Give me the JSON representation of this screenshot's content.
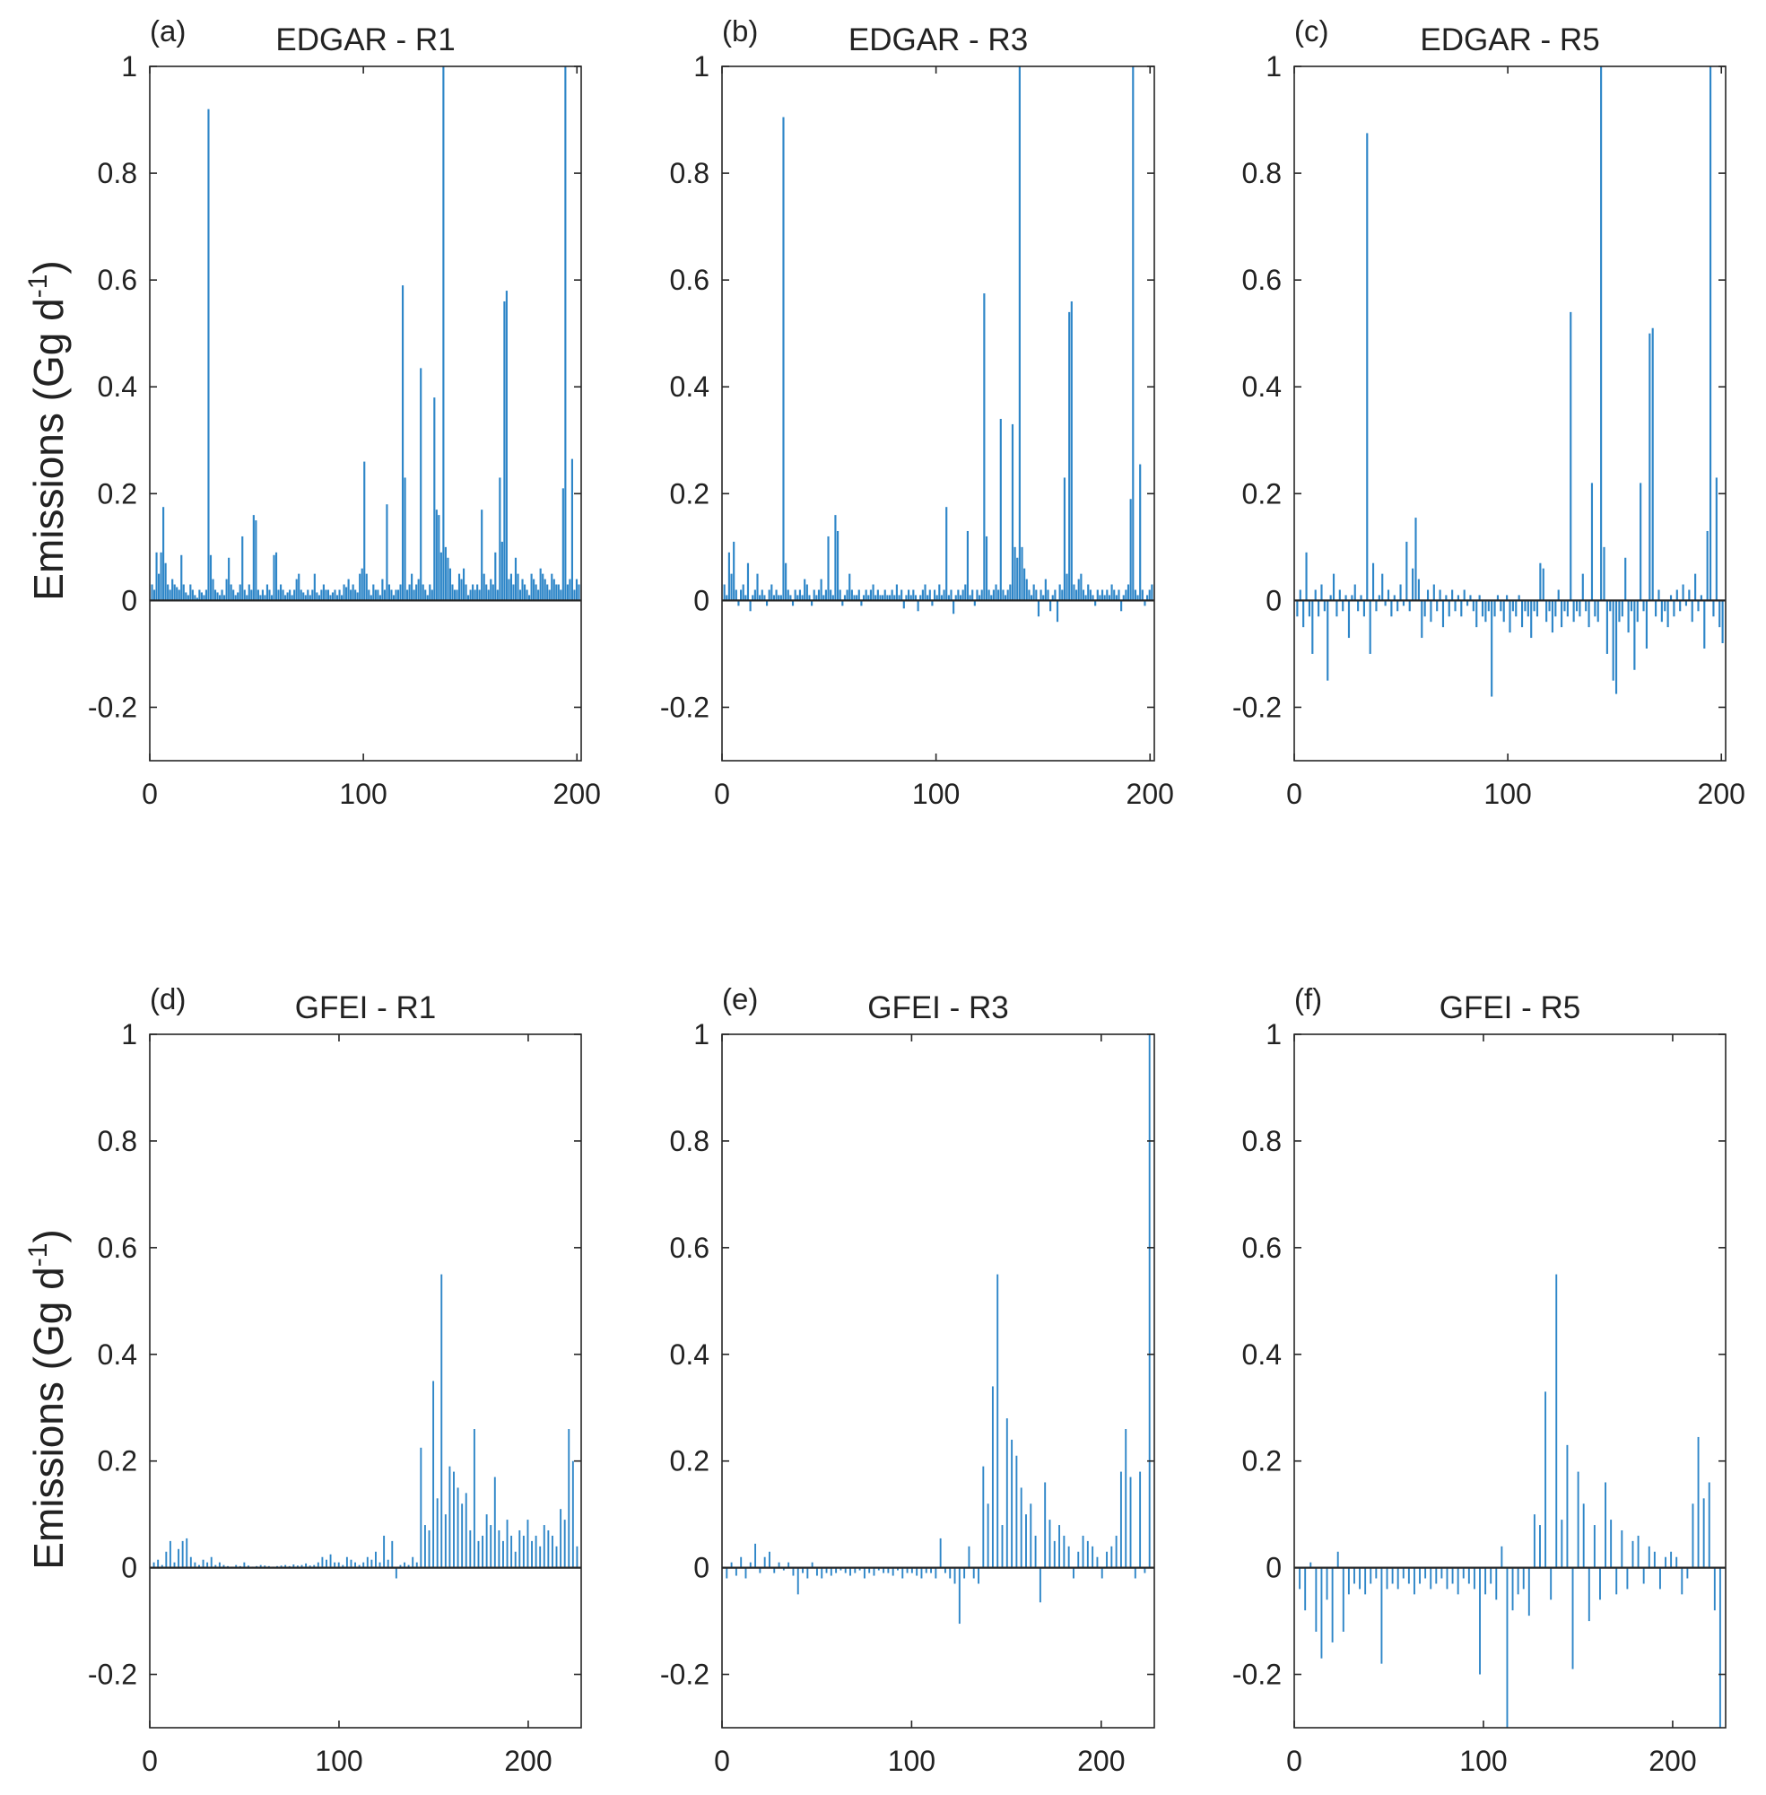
{
  "figure": {
    "ylabel_main": "Emissions (Gg d",
    "ylabel_exp": "-1",
    "ylabel_end": ")"
  },
  "colors": {
    "bar": "#2e86c8",
    "axis": "#262626"
  },
  "chart_data": [
    {
      "type": "bar",
      "panel": "(a)",
      "title": "EDGAR - R1",
      "xlim": [
        0,
        202
      ],
      "xticks": [
        0,
        100,
        200
      ],
      "ylim": [
        -0.3,
        1
      ],
      "yticks": [
        -0.2,
        0,
        0.2,
        0.4,
        0.6,
        0.8,
        1
      ],
      "ytick_labels": [
        "-0.2",
        "0",
        "0.2",
        "0.4",
        "0.6",
        "0.8",
        "1"
      ],
      "series": [
        {
          "values": [
            0.03,
            0.02,
            0.09,
            0.05,
            0.09,
            0.175,
            0.07,
            0.03,
            0.02,
            0.04,
            0.03,
            0.025,
            0.02,
            0.085,
            0.03,
            0.015,
            0.01,
            0.03,
            0.02,
            0.01,
            0.005,
            0.02,
            0.015,
            0.01,
            0.02,
            0.92,
            0.085,
            0.04,
            0.02,
            0.015,
            0.01,
            0.02,
            0.01,
            0.04,
            0.08,
            0.03,
            0.02,
            0.01,
            0.015,
            0.03,
            0.12,
            0.02,
            0.01,
            0.03,
            0.02,
            0.16,
            0.15,
            0.02,
            0.01,
            0.02,
            0.01,
            0.03,
            0.02,
            0.01,
            0.085,
            0.09,
            0.02,
            0.03,
            0.02,
            0.01,
            0.015,
            0.02,
            0.01,
            0.02,
            0.04,
            0.05,
            0.02,
            0.015,
            0.01,
            0.02,
            0.01,
            0.02,
            0.05,
            0.015,
            0.01,
            0.02,
            0.03,
            0.02,
            0.02,
            0.01,
            0.015,
            0.02,
            0.01,
            0.02,
            0.01,
            0.03,
            0.025,
            0.04,
            0.02,
            0.03,
            0.02,
            0.015,
            0.05,
            0.06,
            0.26,
            0.05,
            0.02,
            0.01,
            0.03,
            0.02,
            0.02,
            0.01,
            0.04,
            0.02,
            0.18,
            0.03,
            0.02,
            0.01,
            0.02,
            0.02,
            0.03,
            0.59,
            0.23,
            0.02,
            0.03,
            0.05,
            0.02,
            0.03,
            0.04,
            0.435,
            0.03,
            0.02,
            0.01,
            0.03,
            0.02,
            0.38,
            0.17,
            0.16,
            0.09,
            1.0,
            0.1,
            0.08,
            0.06,
            0.03,
            0.02,
            0.02,
            0.05,
            0.04,
            0.06,
            0.03,
            0.01,
            0.02,
            0.03,
            0.02,
            0.03,
            0.02,
            0.17,
            0.05,
            0.03,
            0.02,
            0.04,
            0.03,
            0.09,
            0.02,
            0.23,
            0.11,
            0.56,
            0.58,
            0.04,
            0.05,
            0.03,
            0.08,
            0.05,
            0.02,
            0.04,
            0.03,
            0.02,
            0.01,
            0.05,
            0.04,
            0.03,
            0.02,
            0.06,
            0.05,
            0.04,
            0.03,
            0.02,
            0.05,
            0.04,
            0.03,
            0.03,
            0.02,
            0.21,
            1.0,
            0.03,
            0.04,
            0.265,
            0.02,
            0.04,
            0.03
          ]
        }
      ]
    },
    {
      "type": "bar",
      "panel": "(b)",
      "title": "EDGAR - R3",
      "xlim": [
        0,
        202
      ],
      "xticks": [
        0,
        100,
        200
      ],
      "ylim": [
        -0.3,
        1
      ],
      "yticks": [
        -0.2,
        0,
        0.2,
        0.4,
        0.6,
        0.8,
        1
      ],
      "ytick_labels": [
        "-0.2",
        "0",
        "0.2",
        "0.4",
        "0.6",
        "0.8",
        "1"
      ],
      "series": [
        {
          "values": [
            0.03,
            0.01,
            0.09,
            0.05,
            0.11,
            0.02,
            -0.01,
            0.02,
            0.03,
            0.01,
            0.07,
            -0.02,
            0.01,
            0.02,
            0.05,
            0.01,
            0.02,
            0.01,
            -0.01,
            0.02,
            0.03,
            0.01,
            0.02,
            0.01,
            0.01,
            0.905,
            0.07,
            0.02,
            0.01,
            -0.01,
            0.02,
            0.01,
            0.02,
            0.01,
            0.04,
            0.03,
            0.01,
            -0.01,
            0.02,
            0.01,
            0.02,
            0.04,
            0.01,
            0.02,
            0.12,
            0.02,
            0.01,
            0.16,
            0.13,
            0.02,
            -0.01,
            0.01,
            0.02,
            0.05,
            0.02,
            0.01,
            0.01,
            0.02,
            -0.01,
            0.01,
            0.02,
            0.01,
            0.02,
            0.03,
            0.01,
            0.02,
            0.01,
            0.01,
            0.02,
            0.01,
            0.01,
            0.02,
            0.01,
            0.03,
            0.01,
            0.02,
            -0.015,
            0.01,
            0.02,
            0.01,
            0.02,
            0.01,
            -0.02,
            0.01,
            0.02,
            0.03,
            0.01,
            0.02,
            -0.01,
            0.02,
            0.01,
            0.03,
            0.01,
            0.02,
            0.175,
            0.01,
            0.02,
            -0.025,
            0.01,
            0.02,
            0.01,
            0.02,
            0.03,
            0.13,
            0.01,
            0.02,
            -0.01,
            0.02,
            0.01,
            0.02,
            0.575,
            0.12,
            0.02,
            0.01,
            0.02,
            0.03,
            0.02,
            0.34,
            0.02,
            0.01,
            0.02,
            0.03,
            0.33,
            0.1,
            0.08,
            1.0,
            0.1,
            0.06,
            0.04,
            0.02,
            0.01,
            0.03,
            0.02,
            -0.03,
            0.02,
            0.01,
            0.04,
            0.02,
            -0.02,
            0.01,
            0.02,
            -0.04,
            0.03,
            0.02,
            0.23,
            0.05,
            0.54,
            0.56,
            0.03,
            0.02,
            0.04,
            0.05,
            0.02,
            0.01,
            0.03,
            0.02,
            0.01,
            -0.01,
            0.02,
            0.01,
            0.02,
            0.01,
            0.02,
            0.01,
            0.03,
            0.02,
            0.01,
            0.02,
            -0.02,
            0.01,
            0.02,
            0.03,
            0.19,
            1.0,
            0.02,
            0.01,
            0.255,
            0.02,
            -0.01,
            0.01,
            0.02,
            0.03
          ]
        }
      ]
    },
    {
      "type": "bar",
      "panel": "(c)",
      "title": "EDGAR - R5",
      "xlim": [
        0,
        202
      ],
      "xticks": [
        0,
        100,
        200
      ],
      "ylim": [
        -0.3,
        1
      ],
      "yticks": [
        -0.2,
        0,
        0.2,
        0.4,
        0.6,
        0.8,
        1
      ],
      "ytick_labels": [
        "-0.2",
        "0",
        "0.2",
        "0.4",
        "0.6",
        "0.8",
        "1"
      ],
      "series": [
        {
          "values": [
            -0.03,
            0.02,
            -0.05,
            0.09,
            -0.03,
            -0.1,
            0.02,
            -0.03,
            0.03,
            -0.02,
            -0.15,
            0.01,
            0.05,
            -0.03,
            0.02,
            -0.02,
            0.01,
            -0.07,
            0.01,
            0.03,
            -0.02,
            0.01,
            -0.03,
            0.875,
            -0.1,
            0.07,
            -0.02,
            0.01,
            0.05,
            -0.01,
            0.02,
            -0.03,
            0.01,
            -0.02,
            0.03,
            -0.01,
            0.11,
            -0.02,
            0.06,
            0.155,
            0.04,
            -0.07,
            -0.03,
            0.02,
            -0.04,
            0.03,
            -0.02,
            0.02,
            -0.05,
            0.01,
            -0.03,
            0.02,
            -0.02,
            0.01,
            -0.03,
            0.02,
            -0.01,
            0.01,
            -0.02,
            -0.05,
            0.01,
            -0.03,
            -0.04,
            -0.02,
            -0.18,
            -0.03,
            0.01,
            -0.02,
            -0.04,
            0.01,
            -0.06,
            -0.02,
            -0.03,
            0.01,
            -0.05,
            -0.02,
            -0.03,
            -0.07,
            -0.02,
            -0.03,
            0.07,
            0.06,
            -0.04,
            -0.02,
            -0.06,
            -0.03,
            0.02,
            -0.05,
            -0.02,
            -0.03,
            0.54,
            -0.04,
            -0.02,
            -0.03,
            0.05,
            -0.02,
            -0.05,
            0.22,
            -0.03,
            -0.04,
            1.0,
            0.1,
            -0.1,
            -0.02,
            -0.15,
            -0.175,
            -0.04,
            -0.03,
            0.08,
            -0.06,
            -0.02,
            -0.13,
            -0.04,
            0.22,
            -0.02,
            -0.09,
            0.5,
            0.51,
            -0.03,
            0.02,
            -0.04,
            -0.02,
            -0.05,
            0.01,
            -0.03,
            0.02,
            -0.02,
            0.03,
            -0.01,
            0.02,
            -0.04,
            0.05,
            -0.02,
            0.01,
            -0.09,
            0.13,
            1.0,
            -0.03,
            0.23,
            -0.05,
            -0.08
          ]
        }
      ]
    },
    {
      "type": "bar",
      "panel": "(d)",
      "title": "GFEI - R1",
      "xlim": [
        0,
        228
      ],
      "xticks": [
        0,
        100,
        200
      ],
      "ylim": [
        -0.3,
        1
      ],
      "yticks": [
        -0.2,
        0,
        0.2,
        0.4,
        0.6,
        0.8,
        1
      ],
      "ytick_labels": [
        "-0.2",
        "0",
        "0.2",
        "0.4",
        "0.6",
        "0.8",
        "1"
      ],
      "series": [
        {
          "values": [
            0.01,
            0.015,
            0.005,
            0.03,
            0.05,
            0.01,
            0.035,
            0.05,
            0.055,
            0.02,
            0.01,
            0.005,
            0.015,
            0.01,
            0.02,
            0.005,
            0.01,
            0.005,
            0.003,
            0.002,
            0.005,
            0.003,
            0.01,
            0.004,
            0.002,
            0.003,
            0.005,
            0.004,
            0.003,
            0.002,
            0.003,
            0.004,
            0.005,
            0.003,
            0.006,
            0.004,
            0.005,
            0.008,
            0.004,
            0.005,
            0.01,
            0.02,
            0.015,
            0.025,
            0.01,
            0.01,
            0.005,
            0.02,
            0.015,
            0.01,
            0.005,
            0.01,
            0.02,
            0.015,
            0.03,
            0.01,
            0.06,
            0.015,
            0.05,
            -0.02,
            0.005,
            0.01,
            0.005,
            0.02,
            0.01,
            0.225,
            0.08,
            0.07,
            0.35,
            0.13,
            0.55,
            0.1,
            0.19,
            0.18,
            0.15,
            0.12,
            0.14,
            0.07,
            0.26,
            0.05,
            0.06,
            0.1,
            0.08,
            0.17,
            0.07,
            0.05,
            0.09,
            0.06,
            0.03,
            0.07,
            0.06,
            0.09,
            0.05,
            0.06,
            0.04,
            0.08,
            0.07,
            0.06,
            0.04,
            0.11,
            0.09,
            0.26,
            0.2,
            0.04
          ]
        }
      ]
    },
    {
      "type": "bar",
      "panel": "(e)",
      "title": "GFEI - R3",
      "xlim": [
        0,
        228
      ],
      "xticks": [
        0,
        100,
        200
      ],
      "ylim": [
        -0.3,
        1
      ],
      "yticks": [
        -0.2,
        0,
        0.2,
        0.4,
        0.6,
        0.8,
        1
      ],
      "ytick_labels": [
        "-0.2",
        "0",
        "0.2",
        "0.4",
        "0.6",
        "0.8",
        "1"
      ],
      "series": [
        {
          "values": [
            -0.02,
            0.01,
            -0.015,
            0.02,
            -0.02,
            0.01,
            0.045,
            -0.01,
            0.02,
            0.03,
            -0.01,
            0.01,
            -0.005,
            0.01,
            -0.015,
            -0.05,
            -0.01,
            -0.02,
            0.01,
            -0.015,
            -0.02,
            -0.01,
            -0.015,
            -0.01,
            -0.005,
            -0.01,
            -0.015,
            -0.01,
            -0.005,
            -0.02,
            -0.01,
            -0.015,
            -0.005,
            -0.01,
            -0.01,
            -0.015,
            -0.005,
            -0.02,
            -0.01,
            -0.01,
            -0.015,
            -0.02,
            -0.01,
            -0.01,
            -0.02,
            0.055,
            -0.01,
            -0.02,
            -0.03,
            -0.105,
            -0.02,
            0.04,
            -0.02,
            -0.03,
            0.19,
            0.12,
            0.34,
            0.55,
            0.08,
            0.28,
            0.24,
            0.21,
            0.15,
            0.1,
            0.12,
            0.06,
            -0.065,
            0.16,
            0.09,
            0.05,
            0.08,
            0.06,
            0.04,
            -0.02,
            0.03,
            0.06,
            0.05,
            0.04,
            0.02,
            -0.02,
            0.03,
            0.04,
            0.06,
            0.18,
            0.26,
            0.17,
            -0.02,
            0.18,
            -0.01,
            1.0
          ]
        }
      ]
    },
    {
      "type": "bar",
      "panel": "(f)",
      "title": "GFEI - R5",
      "xlim": [
        0,
        228
      ],
      "xticks": [
        0,
        100,
        200
      ],
      "ylim": [
        -0.3,
        1
      ],
      "yticks": [
        -0.2,
        0,
        0.2,
        0.4,
        0.6,
        0.8,
        1
      ],
      "ytick_labels": [
        "-0.2",
        "0",
        "0.2",
        "0.4",
        "0.6",
        "0.8",
        "1"
      ],
      "series": [
        {
          "values": [
            -0.04,
            -0.08,
            0.01,
            -0.12,
            -0.17,
            -0.06,
            -0.14,
            0.03,
            -0.12,
            -0.05,
            -0.03,
            -0.04,
            -0.05,
            -0.03,
            -0.02,
            -0.18,
            -0.04,
            -0.03,
            -0.04,
            -0.02,
            -0.03,
            -0.05,
            -0.03,
            -0.02,
            -0.04,
            -0.03,
            -0.02,
            -0.04,
            -0.03,
            -0.05,
            -0.02,
            -0.03,
            -0.04,
            -0.2,
            -0.05,
            -0.03,
            -0.06,
            0.04,
            -0.3,
            -0.08,
            -0.05,
            -0.04,
            -0.09,
            0.1,
            0.08,
            0.33,
            -0.06,
            0.55,
            0.09,
            0.23,
            -0.19,
            0.18,
            0.12,
            -0.1,
            0.08,
            -0.06,
            0.16,
            0.09,
            -0.05,
            0.07,
            -0.04,
            0.05,
            0.06,
            -0.03,
            0.04,
            0.03,
            -0.04,
            0.02,
            0.03,
            0.02,
            -0.05,
            -0.02,
            0.12,
            0.245,
            0.13,
            0.16,
            -0.08,
            -0.3
          ]
        }
      ]
    }
  ]
}
